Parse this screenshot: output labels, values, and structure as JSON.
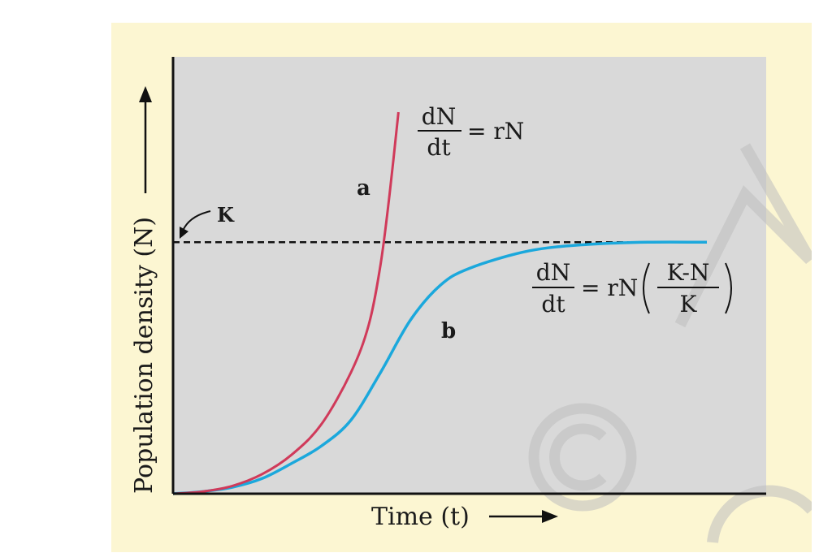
{
  "colors": {
    "page_background": "#ffffff",
    "frame_background": "#fcf6d2",
    "plot_background": "#d9d9d9",
    "curve_a": "#d03a5a",
    "curve_b": "#1ba8dc",
    "axis": "#111111",
    "watermark": "#bdbdbd"
  },
  "watermark": {
    "visible": true,
    "text": "© NCERT"
  },
  "chart_data": {
    "type": "line",
    "title": "",
    "xlabel": "Time (t)",
    "ylabel": "Population density (N)",
    "grid": false,
    "xlim": [
      0,
      100
    ],
    "ylim": [
      0,
      100
    ],
    "carrying_capacity": {
      "label": "K",
      "y": 58,
      "x_end": 90,
      "style": "dashed"
    },
    "series": [
      {
        "name": "a",
        "label": "a",
        "equation": {
          "numerator": "dN",
          "denominator": "dt",
          "rhs": "= rN"
        },
        "x": [
          0,
          5,
          10,
          15,
          20,
          25,
          30,
          33,
          35,
          36.5,
          38
        ],
        "y": [
          0,
          0.5,
          1.8,
          4.5,
          9,
          16,
          28,
          39,
          53,
          69,
          88
        ]
      },
      {
        "name": "b",
        "label": "b",
        "equation": {
          "numerator": "dN",
          "denominator": "dt",
          "rhs_prefix": "= rN",
          "inner_numerator": "K-N",
          "inner_denominator": "K"
        },
        "x": [
          0,
          5,
          10,
          15,
          20,
          25,
          30,
          35,
          40,
          45,
          50,
          60,
          70,
          80,
          90
        ],
        "y": [
          0,
          0.5,
          1.5,
          3.5,
          7,
          11,
          17,
          28,
          40,
          48,
          52,
          56,
          57.5,
          58,
          58
        ]
      }
    ]
  }
}
